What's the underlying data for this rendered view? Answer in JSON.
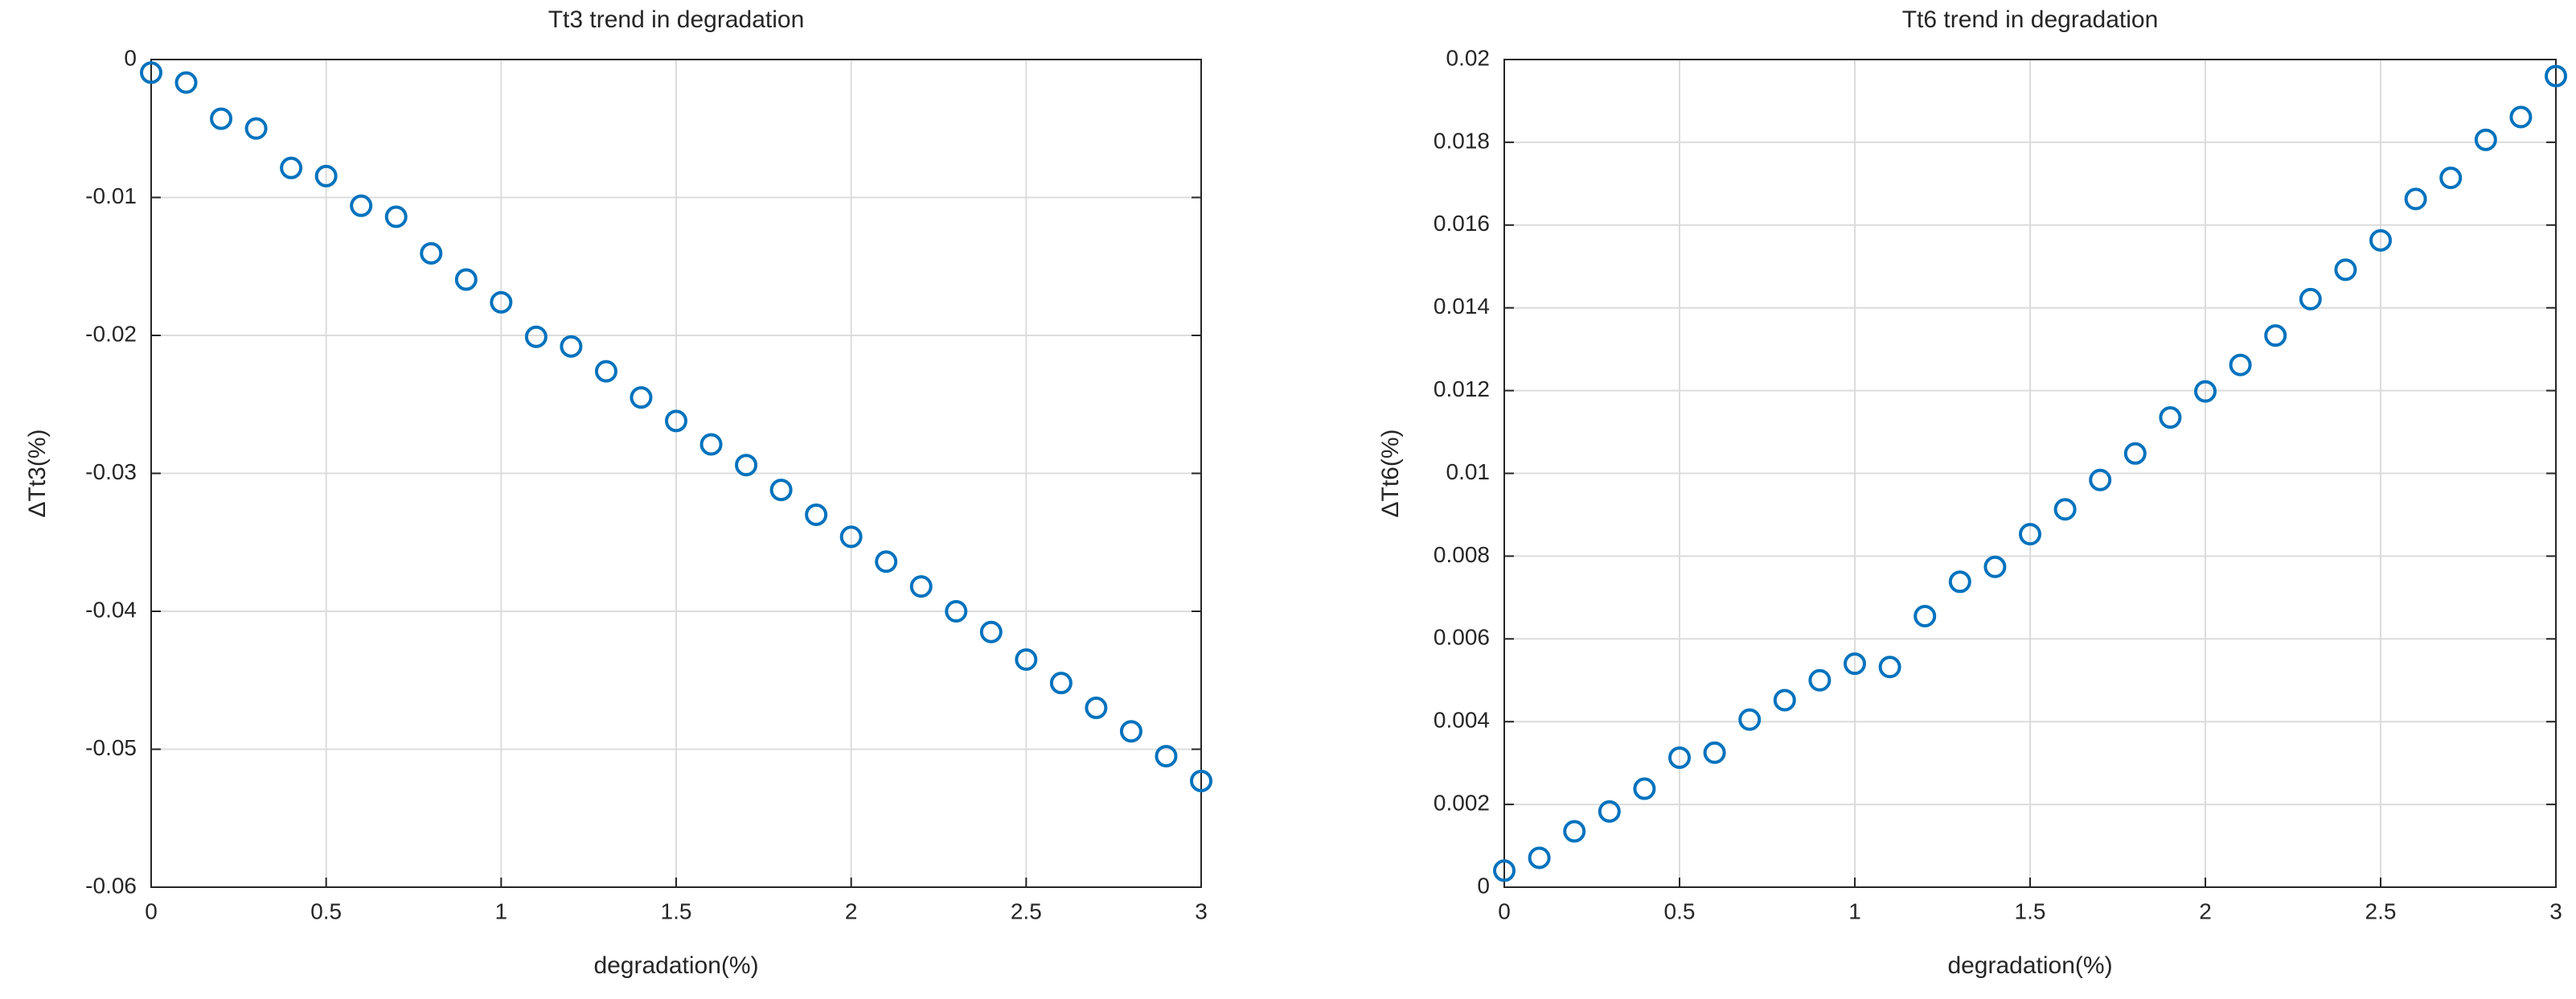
{
  "chart_data": [
    {
      "type": "scatter",
      "title": "Tt3 trend in degradation",
      "xlabel": "degradation(%)",
      "ylabel": "ΔTt3(%)",
      "x": [
        0,
        0.1,
        0.2,
        0.3,
        0.4,
        0.5,
        0.6,
        0.7,
        0.8,
        0.9,
        1,
        1.1,
        1.2,
        1.3,
        1.4,
        1.5,
        1.6,
        1.7,
        1.8,
        1.9,
        2,
        2.1,
        2.2,
        2.3,
        2.4,
        2.5,
        2.6,
        2.7,
        2.8,
        2.9,
        3
      ],
      "values": [
        -0.00095,
        -0.00167,
        -0.00429,
        -0.005,
        -0.00786,
        -0.00845,
        -0.0106,
        -0.0114,
        -0.01405,
        -0.01595,
        -0.0176,
        -0.0201,
        -0.0208,
        -0.0226,
        -0.0245,
        -0.0262,
        -0.0279,
        -0.0294,
        -0.0312,
        -0.033,
        -0.0346,
        -0.0364,
        -0.0382,
        -0.04,
        -0.0415,
        -0.0435,
        -0.0452,
        -0.047,
        -0.0487,
        -0.0505,
        -0.0523
      ],
      "color": "#0072bd",
      "xlim": [
        0,
        3
      ],
      "xticks": [
        0,
        0.5,
        1,
        1.5,
        2,
        2.5,
        3
      ],
      "ylim": [
        -0.06,
        0
      ],
      "yticks": [
        -0.06,
        -0.05,
        -0.04,
        -0.03,
        -0.02,
        -0.01,
        0
      ],
      "grid": true
    },
    {
      "type": "scatter",
      "title": "Tt6 trend in degradation",
      "xlabel": "degradation(%)",
      "ylabel": "ΔTt6(%)",
      "x": [
        0,
        0.1,
        0.2,
        0.3,
        0.4,
        0.5,
        0.6,
        0.7,
        0.8,
        0.9,
        1,
        1.1,
        1.2,
        1.3,
        1.4,
        1.5,
        1.6,
        1.7,
        1.8,
        1.9,
        2,
        2.1,
        2.2,
        2.3,
        2.4,
        2.5,
        2.6,
        2.7,
        2.8,
        2.9,
        3
      ],
      "values": [
        0.0004,
        0.00071,
        0.00135,
        0.00183,
        0.00238,
        0.00313,
        0.00325,
        0.00405,
        0.00452,
        0.005,
        0.0054,
        0.00532,
        0.00655,
        0.00738,
        0.00774,
        0.00853,
        0.00913,
        0.00984,
        0.01048,
        0.01135,
        0.01198,
        0.01262,
        0.01333,
        0.01421,
        0.01492,
        0.01563,
        0.01663,
        0.01714,
        0.01806,
        0.01861,
        0.0196
      ],
      "color": "#0072bd",
      "xlim": [
        0,
        3
      ],
      "xticks": [
        0,
        0.5,
        1,
        1.5,
        2,
        2.5,
        3
      ],
      "ylim": [
        0,
        0.02
      ],
      "yticks": [
        0,
        0.002,
        0.004,
        0.006,
        0.008,
        0.01,
        0.012,
        0.014,
        0.016,
        0.018,
        0.02
      ],
      "grid": true
    }
  ]
}
